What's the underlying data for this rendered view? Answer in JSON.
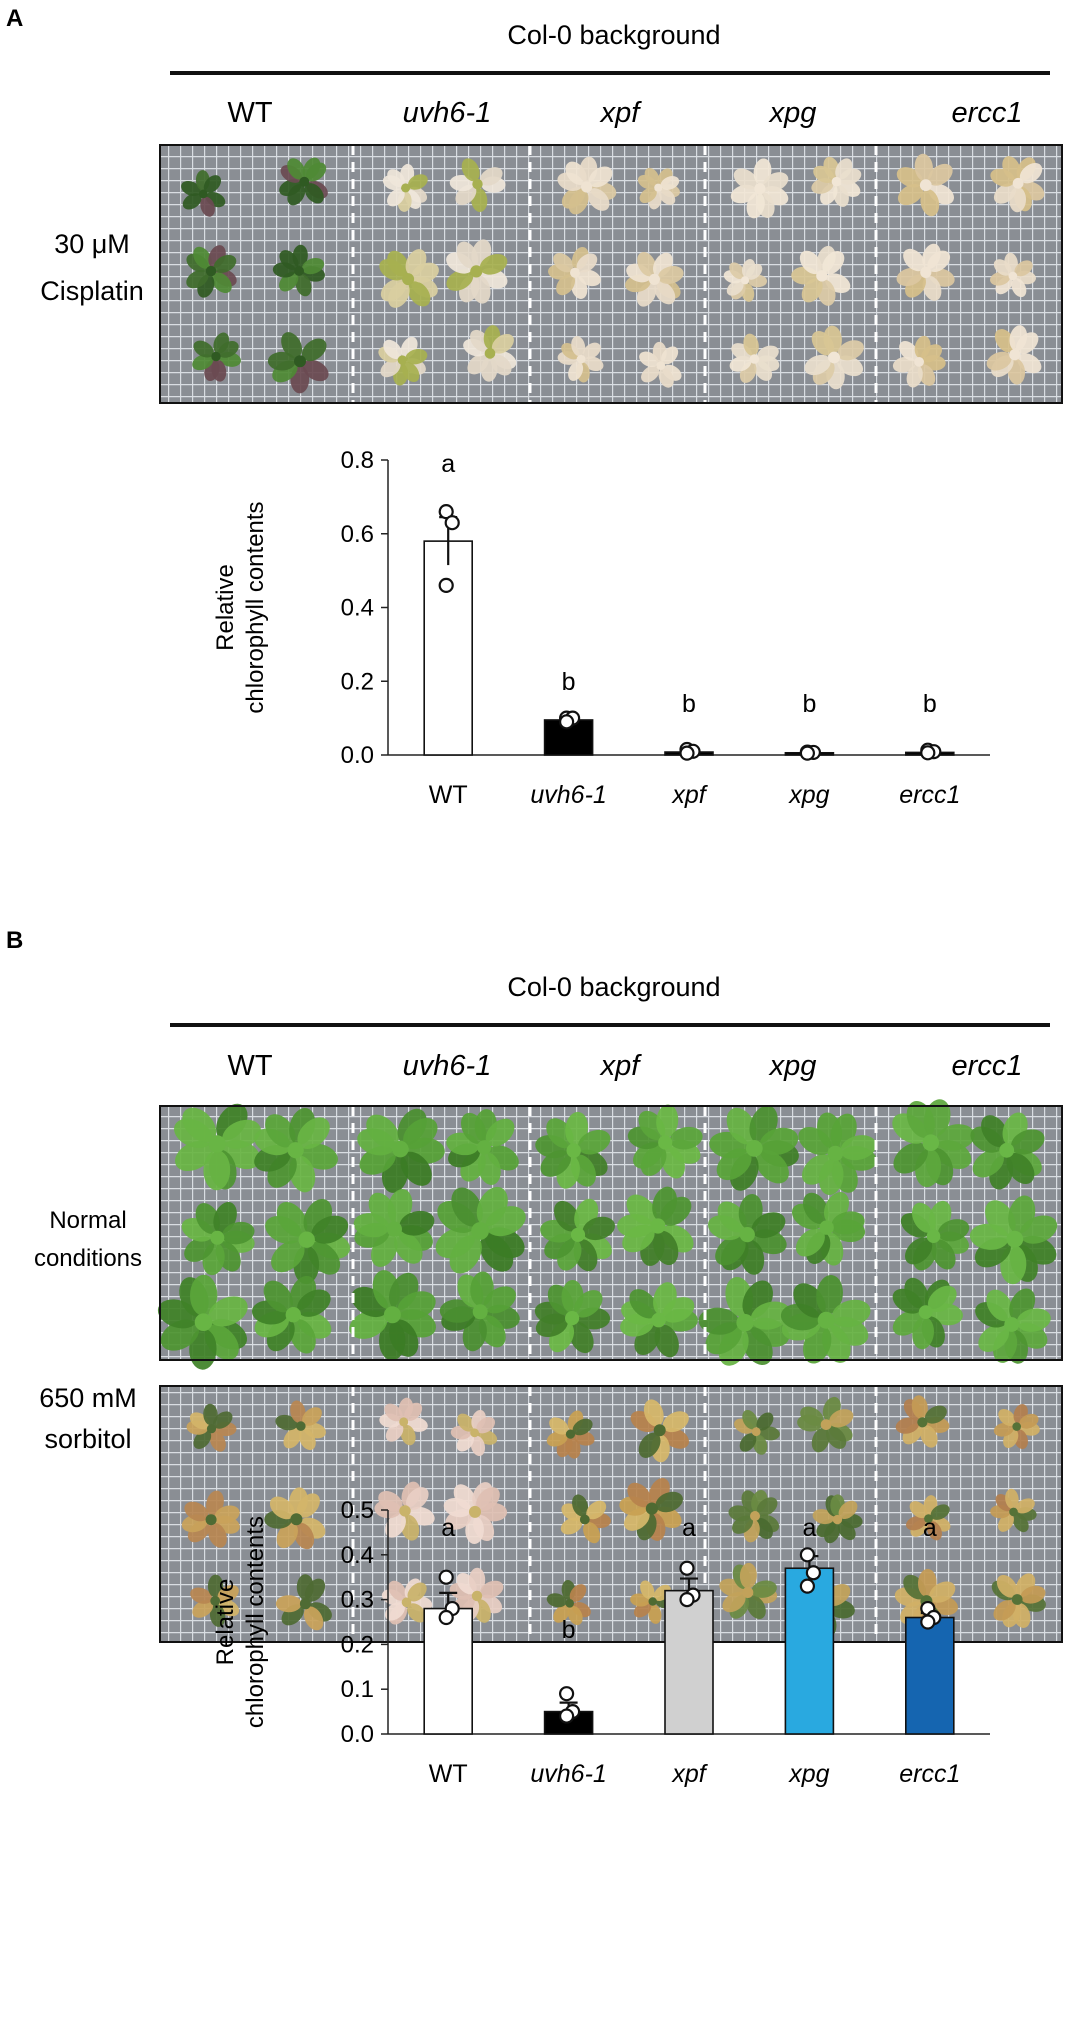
{
  "panels": [
    {
      "letter": "A",
      "background_label": "Col-0 background",
      "genotypes": [
        {
          "label": "WT",
          "italic": false
        },
        {
          "label": "uvh6-1",
          "italic": true
        },
        {
          "label": "xpf",
          "italic": true
        },
        {
          "label": "xpg",
          "italic": true
        },
        {
          "label": "ercc1",
          "italic": true
        }
      ],
      "photo_rows": [
        {
          "label_lines": [
            "30 μM",
            "Cisplatin"
          ],
          "condition": "cisplatin"
        }
      ]
    },
    {
      "letter": "B",
      "background_label": "Col-0 background",
      "genotypes": [
        {
          "label": "WT",
          "italic": false
        },
        {
          "label": "uvh6-1",
          "italic": true
        },
        {
          "label": "xpf",
          "italic": true
        },
        {
          "label": "xpg",
          "italic": true
        },
        {
          "label": "ercc1",
          "italic": true
        }
      ],
      "photo_rows": [
        {
          "label_lines": [
            "Normal",
            "conditions"
          ],
          "condition": "normal"
        },
        {
          "label_lines": [
            "650 mM",
            "sorbitol"
          ],
          "condition": "sorbitol"
        }
      ]
    }
  ],
  "chart_data": [
    {
      "type": "bar",
      "panel": "A",
      "ylabel_lines": [
        "Relative",
        "chlorophyll contents"
      ],
      "ylim": [
        0,
        0.8
      ],
      "yticks": [
        "0.0",
        "0.2",
        "0.4",
        "0.6",
        "0.8"
      ],
      "ytick_values": [
        0,
        0.2,
        0.4,
        0.6,
        0.8
      ],
      "categories": [
        "WT",
        "uvh6-1",
        "xpf",
        "xpg",
        "ercc1"
      ],
      "category_italic": [
        false,
        true,
        true,
        true,
        true
      ],
      "values": [
        0.58,
        0.095,
        0.008,
        0.006,
        0.007
      ],
      "errors": [
        0.065,
        0.005,
        0.004,
        0.003,
        0.004
      ],
      "points": [
        [
          0.66,
          0.63,
          0.46
        ],
        [
          0.1,
          0.1,
          0.09
        ],
        [
          0.015,
          0.01,
          0.005
        ],
        [
          0.008,
          0.007,
          0.005
        ],
        [
          0.013,
          0.009,
          0.006
        ]
      ],
      "letters": [
        "a",
        "b",
        "b",
        "b",
        "b"
      ],
      "colors": [
        "#ffffff",
        "#000000",
        "#000000",
        "#000000",
        "#000000"
      ],
      "grid": false
    },
    {
      "type": "bar",
      "panel": "B",
      "ylabel_lines": [
        "Relative",
        "chlorophyll contents"
      ],
      "ylim": [
        0,
        0.5
      ],
      "yticks": [
        "0.0",
        "0.1",
        "0.2",
        "0.3",
        "0.4",
        "0.5"
      ],
      "ytick_values": [
        0,
        0.1,
        0.2,
        0.3,
        0.4,
        0.5
      ],
      "categories": [
        "WT",
        "uvh6-1",
        "xpf",
        "xpg",
        "ercc1"
      ],
      "category_italic": [
        false,
        true,
        true,
        true,
        true
      ],
      "values": [
        0.28,
        0.05,
        0.32,
        0.37,
        0.26
      ],
      "errors": [
        0.035,
        0.02,
        0.027,
        0.027,
        0.01
      ],
      "points": [
        [
          0.35,
          0.28,
          0.26
        ],
        [
          0.09,
          0.05,
          0.04
        ],
        [
          0.37,
          0.31,
          0.3
        ],
        [
          0.4,
          0.36,
          0.33
        ],
        [
          0.28,
          0.26,
          0.25
        ]
      ],
      "letters": [
        "a",
        "b",
        "a",
        "a",
        "a"
      ],
      "colors": [
        "#ffffff",
        "#000000",
        "#d0d0d0",
        "#29a9e0",
        "#1565b0"
      ],
      "grid": false
    }
  ]
}
